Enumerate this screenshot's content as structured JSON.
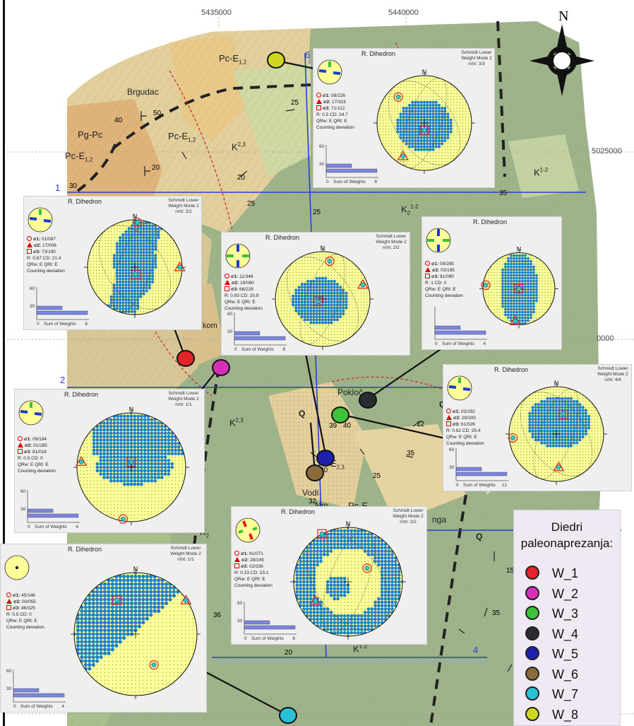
{
  "map": {
    "coords_top": [
      "5435000",
      "5440000"
    ],
    "coords_right": [
      "5025000",
      "0000"
    ],
    "section_numbers": [
      "1",
      "2",
      "4",
      "6"
    ],
    "north_label": "N",
    "unit_labels": [
      "Pc-E",
      "1,2",
      "Pg-Pc",
      "Pc-E",
      "1,2",
      "Pc-E",
      "1,2",
      "K",
      "2,3",
      "K",
      "1-2",
      "K",
      "2",
      "1-2",
      "K",
      "2,3",
      "E",
      "2,3",
      "Pc-E",
      "K",
      "2",
      "K",
      "1-2",
      "Q",
      "Q",
      "Q"
    ],
    "place_names": [
      "Brgudac",
      "kom",
      "Pokloč",
      "Vodi",
      "Nm",
      "nga"
    ],
    "dip_values": [
      "40",
      "50",
      "25",
      "20",
      "30",
      "20",
      "25",
      "35",
      "25",
      "39",
      "40",
      "35",
      "32",
      "30",
      "25",
      "15",
      "35",
      "36",
      "20",
      "32",
      "5",
      "12"
    ]
  },
  "panels": [
    {
      "id": "w8",
      "title": "R. Dihedron",
      "note": "Schmidt Lower\nWeight Mode 2\nn/nt: 3/3",
      "sigma1": "09/226",
      "sigma2": "17/319",
      "sigma3": "71/112",
      "stats1": "R: 0.5   CD: 24.7",
      "stats2": "QRw: E   QRt: E",
      "cd_label": "Counting deviation",
      "axis_label": "Sum of Weights",
      "axis_max": "8",
      "ymax": "60",
      "ymid": "30"
    },
    {
      "id": "w1",
      "title": "R. Dihedron",
      "note": "Schmidt Lower\nWeight Mode 2\nn/nt: 2/2",
      "sigma1": "01/097",
      "sigma2": "17/006",
      "sigma3": "73/190",
      "stats1": "R: 0.67  CD: 21.4",
      "stats2": "QRw: E   QRt: E",
      "cd_label": "Counting deviation",
      "axis_label": "Sum of Weights",
      "axis_max": "8",
      "ymax": "60",
      "ymid": "30"
    },
    {
      "id": "w2",
      "title": "R. Dihedron",
      "note": "Schmidt Lower\nWeight Mode 2\nn/nt: 2/2",
      "sigma1": "11/346",
      "sigma2": "19/080",
      "sigma3": "68/228",
      "stats1": "R: 0.83  CD: 20.9",
      "stats2": "QRw: E   QRt: E",
      "cd_label": "Counting deviation",
      "axis_label": "Sum of Weights",
      "axis_max": "8",
      "ymax": "60",
      "ymid": "30"
    },
    {
      "id": "w4",
      "title": "R. Dihedron",
      "note": "",
      "sigma1": "09/285",
      "sigma2": "03/195",
      "sigma3": "81/090",
      "stats1": "R: 1   CD: 0",
      "stats2": "QRw: E   QRt: E",
      "cd_label": "Counting deviation",
      "axis_label": "Sum of Weights",
      "axis_max": "4",
      "ymax": "",
      "ymid": ""
    },
    {
      "id": "w5",
      "title": "R. Dihedron",
      "note": "Schmidt Lower\nWeight Mode 2\nn/nt: 1/1",
      "sigma1": "09/194",
      "sigma2": "01/285",
      "sigma3": "81/018",
      "stats1": "R: 0.5   CD: 0",
      "stats2": "QRw: E   QRt: E",
      "cd_label": "Counting deviation",
      "axis_label": "Sum of Weights",
      "axis_max": "4",
      "ymax": "60",
      "ymid": "30"
    },
    {
      "id": "w3",
      "title": "R. Dihedron",
      "note": "Schmidt Lower\nWeight Mode 2\nn/nt: 4/4",
      "sigma1": "02/292",
      "sigma2": "29/200",
      "sigma3": "61/026",
      "stats1": "R: 0.62  CD: 25.4",
      "stats2": "QRw: E   QRt: E",
      "cd_label": "Counting deviation",
      "axis_label": "Sum of Weights",
      "axis_max": "12",
      "ymax": "60",
      "ymid": "30"
    },
    {
      "id": "w6",
      "title": "R. Dihedron",
      "note": "Schmidt Lower\nWeight Mode 2\nn/nt: 2/2",
      "sigma1": "61/071",
      "sigma2": "28/245",
      "sigma3": "02/336",
      "stats1": "R: 0.23  CD: 23.1",
      "stats2": "QRw: E   QRt: E",
      "cd_label": "Counting deviation",
      "axis_label": "Sum of Weights",
      "axis_max": "8",
      "ymax": "60",
      "ymid": "30"
    },
    {
      "id": "w7",
      "title": "R. Dihedron",
      "note": "Schmidt Lower\nWeight Mode 2\nn/nt: 1/1",
      "sigma1": "45/146",
      "sigma2": "00/055",
      "sigma3": "46/325",
      "stats1": "R: 0.5   CD: 0",
      "stats2": "QRw: E   QRt: E",
      "cd_label": "Counting deviation",
      "axis_label": "Sum of Weights",
      "axis_max": "4",
      "ymax": "60",
      "ymid": "30"
    }
  ],
  "sigma_labels": {
    "s1": "σ1:",
    "s2": "σ2:",
    "s3": "σ3:"
  },
  "stereonet_n": "N",
  "legend": {
    "title_line1": "Diedri",
    "title_line2": "paleonaprezanja:",
    "items": [
      {
        "label": "W_1",
        "color": "#e5232a"
      },
      {
        "label": "W_2",
        "color": "#d62fb8"
      },
      {
        "label": "W_3",
        "color": "#3ec23a"
      },
      {
        "label": "W_4",
        "color": "#2b2b33"
      },
      {
        "label": "W_5",
        "color": "#1f1fb0"
      },
      {
        "label": "W_6",
        "color": "#8b6b3c"
      },
      {
        "label": "W_7",
        "color": "#29c1d6"
      },
      {
        "label": "W_8",
        "color": "#cfd81f"
      }
    ]
  },
  "colors": {
    "map_green": "#9fb38a",
    "map_tan": "#e2cf9c",
    "map_orange": "#dfb37a",
    "net_yellow": "#ffff99",
    "net_blue": "#1e7fc8",
    "dot_cyan": "#33c8c8",
    "bar_blue": "#7a86e0",
    "section_blue": "#2a3fd0"
  }
}
